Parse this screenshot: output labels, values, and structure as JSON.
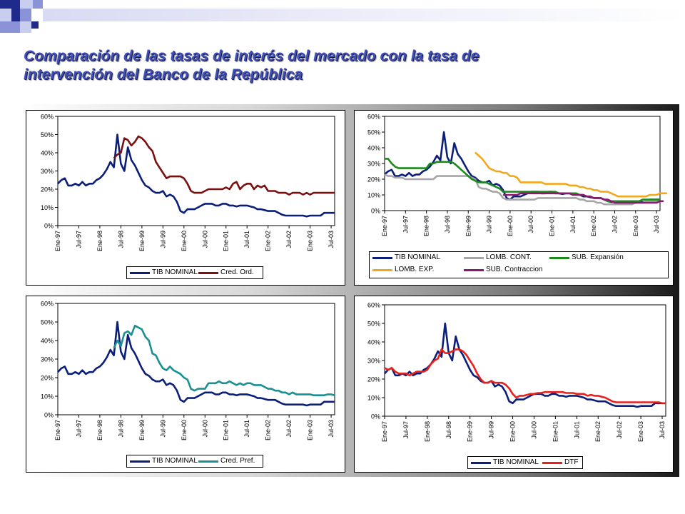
{
  "slide": {
    "title_line1": "Comparación de las tasas de interés del mercado con la tasa de",
    "title_line2": "intervención del Banco de la República"
  },
  "chart_data": [
    {
      "type": "line",
      "ylim": [
        0,
        0.6
      ],
      "yticks": [
        "0%",
        "10%",
        "20%",
        "30%",
        "40%",
        "50%",
        "60%"
      ],
      "xticks": [
        "Ene-97",
        "Jul-97",
        "Ene-98",
        "Jul-98",
        "Ene-99",
        "Jul-99",
        "Ene-00",
        "Jul-00",
        "Ene-01",
        "Jul-01",
        "Ene-02",
        "Jul-02",
        "Ene-03",
        "Jul-03"
      ],
      "x_range": [
        "Ene-97",
        "Ago-03"
      ],
      "legend_position": "bottom",
      "series": [
        {
          "name": "TIB NOMINAL",
          "color": "#0b1f7a",
          "start": 0,
          "step": 1,
          "values": [
            0.23,
            0.25,
            0.26,
            0.22,
            0.22,
            0.23,
            0.22,
            0.24,
            0.22,
            0.23,
            0.23,
            0.25,
            0.26,
            0.28,
            0.31,
            0.35,
            0.32,
            0.5,
            0.34,
            0.3,
            0.43,
            0.36,
            0.33,
            0.29,
            0.25,
            0.22,
            0.21,
            0.19,
            0.18,
            0.18,
            0.19,
            0.16,
            0.17,
            0.16,
            0.13,
            0.08,
            0.07,
            0.09,
            0.09,
            0.09,
            0.1,
            0.11,
            0.12,
            0.12,
            0.12,
            0.11,
            0.11,
            0.12,
            0.12,
            0.11,
            0.11,
            0.105,
            0.11,
            0.11,
            0.11,
            0.105,
            0.1,
            0.09,
            0.09,
            0.085,
            0.08,
            0.08,
            0.08,
            0.07,
            0.06,
            0.055,
            0.055,
            0.055,
            0.055,
            0.055,
            0.055,
            0.05,
            0.055,
            0.055,
            0.055,
            0.055,
            0.07,
            0.07,
            0.07,
            0.07
          ]
        },
        {
          "name": "Cred. Ord.",
          "color": "#7a1010",
          "start": 16,
          "step": 1,
          "values": [
            0.37,
            0.39,
            0.4,
            0.48,
            0.47,
            0.44,
            0.46,
            0.49,
            0.48,
            0.46,
            0.43,
            0.41,
            0.35,
            0.32,
            0.29,
            0.26,
            0.27,
            0.27,
            0.27,
            0.27,
            0.26,
            0.23,
            0.19,
            0.18,
            0.18,
            0.18,
            0.19,
            0.2,
            0.2,
            0.2,
            0.2,
            0.2,
            0.21,
            0.2,
            0.23,
            0.24,
            0.2,
            0.22,
            0.23,
            0.23,
            0.2,
            0.22,
            0.21,
            0.22,
            0.19,
            0.19,
            0.19,
            0.18,
            0.18,
            0.18,
            0.17,
            0.18,
            0.18,
            0.18,
            0.17,
            0.18,
            0.17,
            0.18,
            0.18,
            0.18,
            0.18,
            0.18,
            0.18,
            0.18
          ]
        }
      ]
    },
    {
      "type": "line",
      "ylim": [
        0,
        0.6
      ],
      "yticks": [
        "0%",
        "10%",
        "20%",
        "30%",
        "40%",
        "50%",
        "60%"
      ],
      "xticks": [
        "Ene-97",
        "Jul-97",
        "Ene-98",
        "Jul-98",
        "Ene-99",
        "Jul-99",
        "Ene-00",
        "Jul-00",
        "Ene-01",
        "Jul-01",
        "Ene-02",
        "Jul-02",
        "Ene-03",
        "Jul-03"
      ],
      "x_range": [
        "Ene-97",
        "Ago-03"
      ],
      "legend_position": "bottom",
      "series": [
        {
          "name": "TIB NOMINAL",
          "color": "#0b1f7a",
          "start": 0,
          "step": 1,
          "values": [
            0.23,
            0.25,
            0.26,
            0.22,
            0.22,
            0.23,
            0.22,
            0.24,
            0.22,
            0.23,
            0.23,
            0.25,
            0.26,
            0.28,
            0.31,
            0.35,
            0.32,
            0.5,
            0.34,
            0.3,
            0.43,
            0.36,
            0.33,
            0.29,
            0.25,
            0.22,
            0.21,
            0.19,
            0.18,
            0.18,
            0.19,
            0.16,
            0.17,
            0.16,
            0.13,
            0.08,
            0.07,
            0.09,
            0.09,
            0.09,
            0.1,
            0.11,
            0.12,
            0.12,
            0.12,
            0.11,
            0.11,
            0.12,
            0.12,
            0.11,
            0.11,
            0.105,
            0.11,
            0.11,
            0.11,
            0.105,
            0.1,
            0.09,
            0.09,
            0.085,
            0.08,
            0.08,
            0.08,
            0.07,
            0.06,
            0.055,
            0.055,
            0.055,
            0.055,
            0.055,
            0.055,
            0.05,
            0.055,
            0.055,
            0.055,
            0.055,
            0.07,
            0.07,
            0.07,
            0.07
          ]
        },
        {
          "name": "LOMB. CONT.",
          "color": "#a6a6a6",
          "start": 0,
          "step": 1,
          "values": [
            0.23,
            0.22,
            0.22,
            0.21,
            0.21,
            0.21,
            0.2,
            0.2,
            0.2,
            0.2,
            0.2,
            0.2,
            0.2,
            0.2,
            0.2,
            0.22,
            0.22,
            0.22,
            0.22,
            0.22,
            0.22,
            0.22,
            0.22,
            0.22,
            0.22,
            0.21,
            0.2,
            0.15,
            0.14,
            0.14,
            0.13,
            0.12,
            0.12,
            0.11,
            0.08,
            0.07,
            0.07,
            0.07,
            0.07,
            0.07,
            0.07,
            0.07,
            0.07,
            0.07,
            0.08,
            0.08,
            0.08,
            0.08,
            0.08,
            0.08,
            0.08,
            0.08,
            0.08,
            0.08,
            0.08,
            0.08,
            0.07,
            0.07,
            0.06,
            0.06,
            0.06,
            0.05,
            0.05,
            0.04,
            0.04,
            0.04,
            0.04,
            0.04,
            0.04,
            0.04,
            0.04,
            0.04,
            0.05,
            0.05,
            0.05,
            0.06,
            0.06,
            0.06,
            0.06,
            0.06
          ]
        },
        {
          "name": "SUB. Expansión",
          "color": "#1c8a1c",
          "start": 0,
          "step": 1,
          "values": [
            0.33,
            0.33,
            0.3,
            0.28,
            0.27,
            0.27,
            0.27,
            0.27,
            0.27,
            0.27,
            0.27,
            0.27,
            0.27,
            0.3,
            0.3,
            0.31,
            0.31,
            0.31,
            0.31,
            0.31,
            0.3,
            0.28,
            0.26,
            0.24,
            0.22,
            0.2,
            0.19,
            0.18,
            0.18,
            0.18,
            0.17,
            0.16,
            0.15,
            0.14,
            0.12,
            0.12,
            0.12,
            0.12,
            0.12,
            0.12,
            0.12,
            0.12,
            0.12,
            0.12,
            0.12,
            0.12,
            0.12,
            0.12,
            0.12,
            0.12,
            0.11,
            0.11,
            0.11,
            0.11,
            0.11,
            0.11,
            0.1,
            0.1,
            0.09,
            0.09,
            0.08,
            0.08,
            0.08,
            0.07,
            0.06,
            0.06,
            0.06,
            0.06,
            0.06,
            0.06,
            0.06,
            0.06,
            0.06,
            0.06,
            0.07,
            0.07,
            0.07,
            0.07,
            0.07,
            0.07
          ]
        },
        {
          "name": "LOMB. EXP.",
          "color": "#f2a81d",
          "start": 26,
          "step": 1,
          "values": [
            0.37,
            0.35,
            0.33,
            0.3,
            0.27,
            0.26,
            0.25,
            0.25,
            0.24,
            0.24,
            0.22,
            0.22,
            0.21,
            0.18,
            0.18,
            0.18,
            0.18,
            0.18,
            0.18,
            0.18,
            0.17,
            0.17,
            0.17,
            0.17,
            0.17,
            0.17,
            0.17,
            0.16,
            0.16,
            0.16,
            0.15,
            0.15,
            0.14,
            0.14,
            0.13,
            0.13,
            0.12,
            0.12,
            0.12,
            0.11,
            0.1,
            0.09,
            0.09,
            0.09,
            0.09,
            0.09,
            0.09,
            0.09,
            0.09,
            0.09,
            0.1,
            0.1,
            0.1,
            0.11,
            0.11,
            0.11
          ]
        },
        {
          "name": "SUB. Contraccion",
          "color": "#8a1a6e",
          "start": 34,
          "step": 1,
          "values": [
            0.1,
            0.1,
            0.1,
            0.1,
            0.1,
            0.11,
            0.11,
            0.11,
            0.11,
            0.11,
            0.11,
            0.11,
            0.11,
            0.11,
            0.11,
            0.11,
            0.11,
            0.11,
            0.11,
            0.11,
            0.1,
            0.1,
            0.1,
            0.1,
            0.09,
            0.09,
            0.08,
            0.08,
            0.08,
            0.07,
            0.07,
            0.06,
            0.05,
            0.05,
            0.05,
            0.05,
            0.05,
            0.05,
            0.05,
            0.05,
            0.05,
            0.05,
            0.05,
            0.05,
            0.05,
            0.06,
            0.06
          ]
        }
      ]
    },
    {
      "type": "line",
      "ylim": [
        0,
        0.6
      ],
      "yticks": [
        "0%",
        "10%",
        "20%",
        "30%",
        "40%",
        "50%",
        "60%"
      ],
      "xticks": [
        "Ene-97",
        "Jul-97",
        "Ene-98",
        "Jul-98",
        "Ene-99",
        "Jul-99",
        "Ene-00",
        "Jul-00",
        "Ene-01",
        "Jul-01",
        "Ene-02",
        "Jul-02",
        "Ene-03",
        "Jul-03"
      ],
      "x_range": [
        "Ene-97",
        "Ago-03"
      ],
      "legend_position": "bottom",
      "series": [
        {
          "name": "TIB NOMINAL",
          "color": "#0b1f7a",
          "start": 0,
          "step": 1,
          "values": [
            0.23,
            0.25,
            0.26,
            0.22,
            0.22,
            0.23,
            0.22,
            0.24,
            0.22,
            0.23,
            0.23,
            0.25,
            0.26,
            0.28,
            0.31,
            0.35,
            0.32,
            0.5,
            0.34,
            0.3,
            0.43,
            0.36,
            0.33,
            0.29,
            0.25,
            0.22,
            0.21,
            0.19,
            0.18,
            0.18,
            0.19,
            0.16,
            0.17,
            0.16,
            0.13,
            0.08,
            0.07,
            0.09,
            0.09,
            0.09,
            0.1,
            0.11,
            0.12,
            0.12,
            0.12,
            0.11,
            0.11,
            0.12,
            0.12,
            0.11,
            0.11,
            0.105,
            0.11,
            0.11,
            0.11,
            0.105,
            0.1,
            0.09,
            0.09,
            0.085,
            0.08,
            0.08,
            0.08,
            0.07,
            0.06,
            0.055,
            0.055,
            0.055,
            0.055,
            0.055,
            0.055,
            0.05,
            0.055,
            0.055,
            0.055,
            0.055,
            0.07,
            0.07,
            0.07,
            0.07
          ]
        },
        {
          "name": "Cred. Pref.",
          "color": "#1a9090",
          "start": 16,
          "step": 1,
          "values": [
            0.36,
            0.4,
            0.37,
            0.44,
            0.45,
            0.43,
            0.48,
            0.47,
            0.46,
            0.42,
            0.4,
            0.33,
            0.32,
            0.28,
            0.25,
            0.24,
            0.26,
            0.24,
            0.23,
            0.22,
            0.2,
            0.19,
            0.14,
            0.13,
            0.14,
            0.14,
            0.14,
            0.17,
            0.17,
            0.17,
            0.18,
            0.17,
            0.17,
            0.18,
            0.17,
            0.16,
            0.17,
            0.16,
            0.17,
            0.17,
            0.16,
            0.16,
            0.16,
            0.15,
            0.14,
            0.14,
            0.13,
            0.13,
            0.12,
            0.12,
            0.11,
            0.12,
            0.11,
            0.11,
            0.11,
            0.11,
            0.11,
            0.105,
            0.105,
            0.105,
            0.105,
            0.11,
            0.11,
            0.105
          ]
        }
      ]
    },
    {
      "type": "line",
      "ylim": [
        0,
        0.6
      ],
      "yticks": [
        "0%",
        "10%",
        "20%",
        "30%",
        "40%",
        "50%",
        "60%"
      ],
      "xticks": [
        "Ene-97",
        "Jul-97",
        "Ene-98",
        "Jul-98",
        "Ene-99",
        "Jul-99",
        "Ene-00",
        "Jul-00",
        "Ene-01",
        "Jul-01",
        "Ene-02",
        "Jul-02",
        "Ene-03",
        "Jul-03"
      ],
      "x_range": [
        "Ene-97",
        "Ago-03"
      ],
      "legend_position": "bottom",
      "series": [
        {
          "name": "TIB NOMINAL",
          "color": "#0b1f7a",
          "start": 0,
          "step": 1,
          "values": [
            0.23,
            0.25,
            0.26,
            0.22,
            0.22,
            0.23,
            0.22,
            0.24,
            0.22,
            0.23,
            0.23,
            0.25,
            0.26,
            0.28,
            0.31,
            0.35,
            0.32,
            0.5,
            0.34,
            0.3,
            0.43,
            0.36,
            0.33,
            0.29,
            0.25,
            0.22,
            0.21,
            0.19,
            0.18,
            0.18,
            0.19,
            0.16,
            0.17,
            0.16,
            0.13,
            0.08,
            0.07,
            0.09,
            0.09,
            0.09,
            0.1,
            0.11,
            0.12,
            0.12,
            0.12,
            0.11,
            0.11,
            0.12,
            0.12,
            0.11,
            0.11,
            0.105,
            0.11,
            0.11,
            0.11,
            0.105,
            0.1,
            0.09,
            0.09,
            0.085,
            0.08,
            0.08,
            0.08,
            0.07,
            0.06,
            0.055,
            0.055,
            0.055,
            0.055,
            0.055,
            0.055,
            0.05,
            0.055,
            0.055,
            0.055,
            0.055,
            0.07,
            0.07,
            0.07,
            0.07
          ]
        },
        {
          "name": "DTF",
          "color": "#e8201c",
          "start": 0,
          "step": 1,
          "values": [
            0.26,
            0.25,
            0.26,
            0.24,
            0.23,
            0.23,
            0.23,
            0.22,
            0.23,
            0.24,
            0.24,
            0.24,
            0.25,
            0.28,
            0.3,
            0.31,
            0.36,
            0.34,
            0.34,
            0.35,
            0.36,
            0.36,
            0.35,
            0.33,
            0.3,
            0.27,
            0.23,
            0.2,
            0.18,
            0.18,
            0.19,
            0.18,
            0.18,
            0.18,
            0.17,
            0.15,
            0.12,
            0.1,
            0.11,
            0.11,
            0.115,
            0.12,
            0.12,
            0.125,
            0.125,
            0.13,
            0.13,
            0.13,
            0.13,
            0.13,
            0.13,
            0.125,
            0.125,
            0.125,
            0.12,
            0.12,
            0.12,
            0.11,
            0.115,
            0.11,
            0.11,
            0.105,
            0.1,
            0.09,
            0.08,
            0.075,
            0.075,
            0.075,
            0.075,
            0.075,
            0.075,
            0.075,
            0.075,
            0.075,
            0.075,
            0.075,
            0.075,
            0.075,
            0.07,
            0.07
          ]
        }
      ]
    }
  ]
}
